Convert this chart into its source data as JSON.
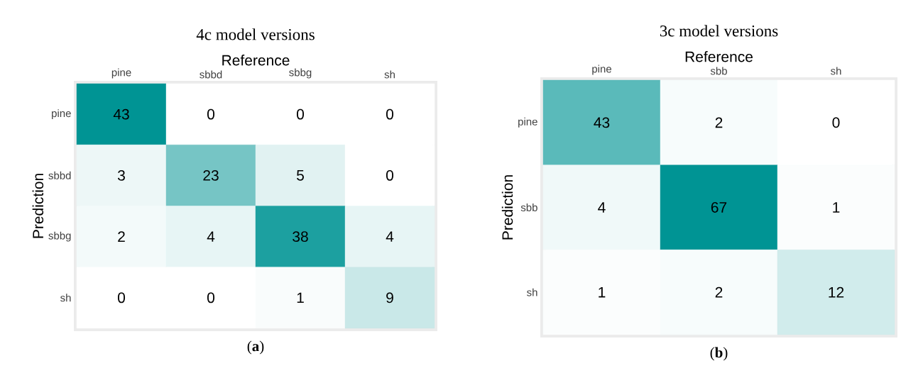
{
  "chart_data": [
    {
      "type": "heatmap",
      "title": "4c model versions",
      "xlabel": "Reference",
      "ylabel": "Prediction",
      "categories": [
        "pine",
        "sbbd",
        "sbbg",
        "sh"
      ],
      "y_categories": [
        "pine",
        "sbbd",
        "sbbg",
        "sh"
      ],
      "cells": [
        [
          43,
          0,
          0,
          0
        ],
        [
          3,
          23,
          5,
          0
        ],
        [
          2,
          4,
          38,
          4
        ],
        [
          0,
          0,
          1,
          9
        ]
      ],
      "data_labels": true,
      "annotations": [
        "(**a**)"
      ]
    },
    {
      "type": "heatmap",
      "title": "3c model versions",
      "xlabel": "Reference",
      "ylabel": "Prediction",
      "categories": [
        "pine",
        "sbb",
        "sh"
      ],
      "y_categories": [
        "pine",
        "sbb",
        "sh"
      ],
      "cells": [
        [
          43,
          2,
          0
        ],
        [
          4,
          67,
          1
        ],
        [
          1,
          2,
          12
        ]
      ],
      "data_labels": true,
      "annotations": [
        "(**b**)"
      ]
    }
  ]
}
